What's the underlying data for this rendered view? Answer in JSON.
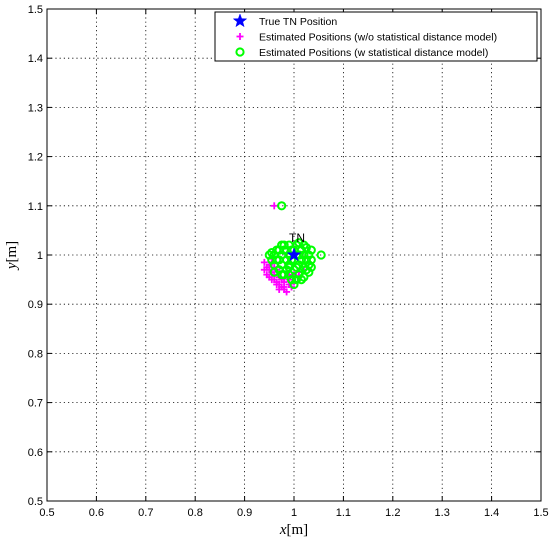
{
  "chart_data": {
    "type": "scatter",
    "title": "",
    "xlabel": "x[m]",
    "ylabel": "y[m]",
    "xlabel_var": "x",
    "xlabel_unit": "[m]",
    "ylabel_var": "y",
    "ylabel_unit": "[m]",
    "xlim": [
      0.5,
      1.5
    ],
    "ylim": [
      0.5,
      1.5
    ],
    "grid": true,
    "grid_style": "dotted",
    "legend_position": "top-right",
    "x_ticks": [
      "0.5",
      "0.6",
      "0.7",
      "0.8",
      "0.9",
      "1",
      "1.1",
      "1.2",
      "1.3",
      "1.4",
      "1.5"
    ],
    "y_ticks": [
      "0.5",
      "0.6",
      "0.7",
      "0.8",
      "0.9",
      "1",
      "1.1",
      "1.2",
      "1.3",
      "1.4",
      "1.5"
    ],
    "annotations": [
      {
        "text": "TN",
        "x": 1.0,
        "y": 1.02
      }
    ],
    "series": [
      {
        "name": "True TN Position",
        "marker": "star",
        "color": "#0000ff",
        "points": [
          [
            1.0,
            1.0
          ]
        ]
      },
      {
        "name": "Estimated Positions (w/o statistical distance model)",
        "marker": "plus",
        "color": "#ff00ff",
        "points": [
          [
            0.96,
            1.1
          ],
          [
            0.94,
            0.97
          ],
          [
            0.945,
            0.96
          ],
          [
            0.95,
            0.955
          ],
          [
            0.955,
            0.965
          ],
          [
            0.96,
            0.95
          ],
          [
            0.965,
            0.945
          ],
          [
            0.97,
            0.94
          ],
          [
            0.975,
            0.935
          ],
          [
            0.98,
            0.93
          ],
          [
            0.985,
            0.925
          ],
          [
            0.99,
            0.94
          ],
          [
            0.95,
            0.97
          ],
          [
            0.96,
            0.96
          ],
          [
            0.97,
            0.955
          ],
          [
            0.975,
            0.95
          ],
          [
            0.98,
            0.945
          ],
          [
            0.99,
            0.95
          ],
          [
            1.0,
            0.945
          ],
          [
            1.01,
            0.955
          ],
          [
            0.945,
            0.975
          ],
          [
            0.955,
            0.95
          ],
          [
            0.965,
            0.94
          ],
          [
            0.97,
            0.93
          ],
          [
            0.98,
            0.935
          ],
          [
            0.99,
            0.96
          ],
          [
            1.0,
            0.96
          ],
          [
            0.96,
            0.975
          ],
          [
            0.95,
            0.98
          ],
          [
            0.94,
            0.985
          ],
          [
            0.955,
            0.985
          ],
          [
            0.965,
            0.97
          ],
          [
            1.01,
            0.965
          ],
          [
            1.02,
            0.97
          ],
          [
            0.995,
            0.935
          ]
        ]
      },
      {
        "name": "Estimated Positions (w statistical distance model)",
        "marker": "circle",
        "color": "#00ff00",
        "points": [
          [
            0.975,
            1.1
          ],
          [
            1.055,
            1.0
          ],
          [
            1.035,
            0.975
          ],
          [
            1.0,
            0.94
          ],
          [
            0.95,
            1.0
          ],
          [
            0.955,
            0.99
          ],
          [
            0.96,
            1.0
          ],
          [
            0.96,
            0.98
          ],
          [
            0.965,
            1.01
          ],
          [
            0.97,
            0.99
          ],
          [
            0.97,
            0.97
          ],
          [
            0.975,
            1.02
          ],
          [
            0.975,
            1.0
          ],
          [
            0.975,
            0.98
          ],
          [
            0.98,
            0.96
          ],
          [
            0.98,
            1.01
          ],
          [
            0.985,
            0.99
          ],
          [
            0.985,
            0.97
          ],
          [
            0.99,
            1.02
          ],
          [
            0.99,
            1.0
          ],
          [
            0.99,
            0.98
          ],
          [
            0.99,
            0.96
          ],
          [
            0.995,
            1.01
          ],
          [
            0.995,
            0.95
          ],
          [
            1.0,
            0.99
          ],
          [
            1.0,
            0.97
          ],
          [
            1.005,
            1.02
          ],
          [
            1.005,
            1.0
          ],
          [
            1.01,
            0.98
          ],
          [
            1.01,
            0.96
          ],
          [
            1.015,
            1.01
          ],
          [
            1.015,
            0.99
          ],
          [
            1.02,
            1.0
          ],
          [
            1.02,
            0.975
          ],
          [
            1.02,
            0.955
          ],
          [
            1.025,
            1.015
          ],
          [
            1.025,
            0.99
          ],
          [
            1.03,
            1.0
          ],
          [
            1.03,
            0.98
          ],
          [
            1.03,
            0.965
          ],
          [
            1.035,
            0.99
          ],
          [
            1.035,
            1.01
          ],
          [
            1.015,
            0.95
          ],
          [
            1.005,
            0.95
          ],
          [
            0.965,
            0.99
          ],
          [
            0.97,
            1.01
          ],
          [
            0.98,
            1.02
          ],
          [
            0.985,
            1.01
          ],
          [
            0.995,
            0.99
          ],
          [
            1.0,
            1.01
          ],
          [
            1.01,
            1.0
          ],
          [
            1.02,
            1.02
          ],
          [
            0.96,
            0.965
          ],
          [
            0.975,
            0.96
          ],
          [
            0.99,
            0.975
          ],
          [
            1.005,
            0.975
          ],
          [
            1.025,
            0.97
          ],
          [
            0.955,
            1.005
          ],
          [
            1.01,
            1.025
          ]
        ]
      }
    ]
  },
  "colors": {
    "true_position": "#0000ff",
    "without_model": "#ff00ff",
    "with_model": "#00ff00",
    "grid": "#000000",
    "axes": "#000000"
  }
}
